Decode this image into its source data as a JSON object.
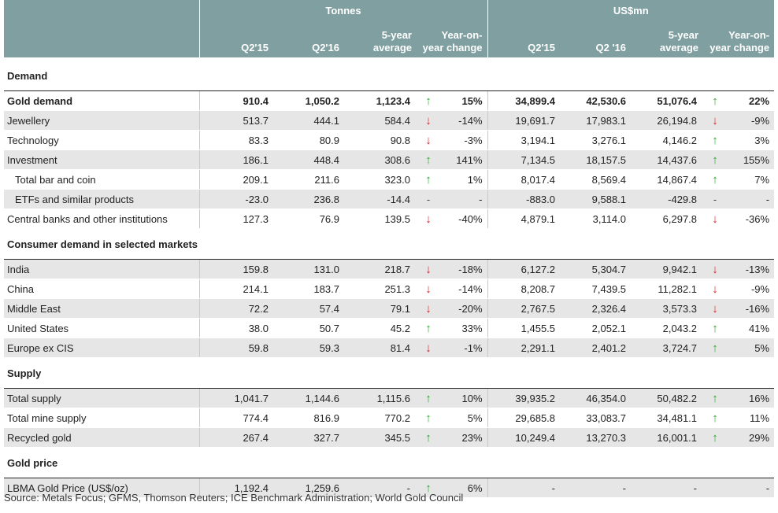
{
  "header": {
    "group_tonnes": "Tonnes",
    "group_usd": "US$mn",
    "col_q2_15": "Q2'15",
    "col_q2_16": "Q2'16",
    "col_5yr_1": "5-year",
    "col_5yr_2": "average",
    "col_yoy_1": "Year-on-",
    "col_yoy_2": "year change",
    "col_q2_15_usd": "Q2'15",
    "col_q2_16_usd": "Q2 '16",
    "col_5yr_usd_1": "5-year",
    "col_5yr_usd_2": "average",
    "col_yoy_usd_1": "Year-on-",
    "col_yoy_usd_2": "year change"
  },
  "sections": {
    "demand": "Demand",
    "consumer": "Consumer demand in selected markets",
    "supply": "Supply",
    "price": "Gold price"
  },
  "rows": [
    {
      "label": "Gold demand",
      "t1": "910.4",
      "t2": "1,050.2",
      "t3": "1,123.4",
      "ta": "up",
      "tc": "15%",
      "u1": "34,899.4",
      "u2": "42,530.6",
      "u3": "51,076.4",
      "ua": "up",
      "uc": "22%"
    },
    {
      "label": "Jewellery",
      "t1": "513.7",
      "t2": "444.1",
      "t3": "584.4",
      "ta": "down",
      "tc": "-14%",
      "u1": "19,691.7",
      "u2": "17,983.1",
      "u3": "26,194.8",
      "ua": "down",
      "uc": "-9%"
    },
    {
      "label": "Technology",
      "t1": "83.3",
      "t2": "80.9",
      "t3": "90.8",
      "ta": "down",
      "tc": "-3%",
      "u1": "3,194.1",
      "u2": "3,276.1",
      "u3": "4,146.2",
      "ua": "up",
      "uc": "3%"
    },
    {
      "label": "Investment",
      "t1": "186.1",
      "t2": "448.4",
      "t3": "308.6",
      "ta": "up",
      "tc": "141%",
      "u1": "7,134.5",
      "u2": "18,157.5",
      "u3": "14,437.6",
      "ua": "up",
      "uc": "155%"
    },
    {
      "label": "Total bar and coin",
      "t1": "209.1",
      "t2": "211.6",
      "t3": "323.0",
      "ta": "up",
      "tc": "1%",
      "u1": "8,017.4",
      "u2": "8,569.4",
      "u3": "14,867.4",
      "ua": "up",
      "uc": "7%"
    },
    {
      "label": "ETFs and similar products",
      "t1": "-23.0",
      "t2": "236.8",
      "t3": "-14.4",
      "ta": "-",
      "tc": "-",
      "u1": "-883.0",
      "u2": "9,588.1",
      "u3": "-429.8",
      "ua": "-",
      "uc": "-"
    },
    {
      "label": "Central banks and other institutions",
      "t1": "127.3",
      "t2": "76.9",
      "t3": "139.5",
      "ta": "down",
      "tc": "-40%",
      "u1": "4,879.1",
      "u2": "3,114.0",
      "u3": "6,297.8",
      "ua": "down",
      "uc": "-36%"
    },
    {
      "label": "India",
      "t1": "159.8",
      "t2": "131.0",
      "t3": "218.7",
      "ta": "down",
      "tc": "-18%",
      "u1": "6,127.2",
      "u2": "5,304.7",
      "u3": "9,942.1",
      "ua": "down",
      "uc": "-13%"
    },
    {
      "label": "China",
      "t1": "214.1",
      "t2": "183.7",
      "t3": "251.3",
      "ta": "down",
      "tc": "-14%",
      "u1": "8,208.7",
      "u2": "7,439.5",
      "u3": "11,282.1",
      "ua": "down",
      "uc": "-9%"
    },
    {
      "label": "Middle East",
      "t1": "72.2",
      "t2": "57.4",
      "t3": "79.1",
      "ta": "down",
      "tc": "-20%",
      "u1": "2,767.5",
      "u2": "2,326.4",
      "u3": "3,573.3",
      "ua": "down",
      "uc": "-16%"
    },
    {
      "label": "United States",
      "t1": "38.0",
      "t2": "50.7",
      "t3": "45.2",
      "ta": "up",
      "tc": "33%",
      "u1": "1,455.5",
      "u2": "2,052.1",
      "u3": "2,043.2",
      "ua": "up",
      "uc": "41%"
    },
    {
      "label": "Europe ex CIS",
      "t1": "59.8",
      "t2": "59.3",
      "t3": "81.4",
      "ta": "down",
      "tc": "-1%",
      "u1": "2,291.1",
      "u2": "2,401.2",
      "u3": "3,724.7",
      "ua": "up",
      "uc": "5%"
    },
    {
      "label": "Total supply",
      "t1": "1,041.7",
      "t2": "1,144.6",
      "t3": "1,115.6",
      "ta": "up",
      "tc": "10%",
      "u1": "39,935.2",
      "u2": "46,354.0",
      "u3": "50,482.2",
      "ua": "up",
      "uc": "16%"
    },
    {
      "label": "Total mine supply",
      "t1": "774.4",
      "t2": "816.9",
      "t3": "770.2",
      "ta": "up",
      "tc": "5%",
      "u1": "29,685.8",
      "u2": "33,083.7",
      "u3": "34,481.1",
      "ua": "up",
      "uc": "11%"
    },
    {
      "label": "Recycled gold",
      "t1": "267.4",
      "t2": "327.7",
      "t3": "345.5",
      "ta": "up",
      "tc": "23%",
      "u1": "10,249.4",
      "u2": "13,270.3",
      "u3": "16,001.1",
      "ua": "up",
      "uc": "29%"
    },
    {
      "label": "LBMA Gold Price (US$/oz)",
      "t1": "1,192.4",
      "t2": "1,259.6",
      "t3": "-",
      "ta": "up",
      "tc": "6%",
      "u1": "-",
      "u2": "-",
      "u3": "-",
      "ua": "",
      "uc": "-"
    }
  ],
  "arrow_colors": {
    "up": "#2bab2b",
    "down": "#e21f1f"
  },
  "icons": {
    "up": "arrow-up-icon",
    "down": "arrow-down-icon"
  },
  "source": "Source: Metals Focus; GFMS, Thomson Reuters; ICE Benchmark Administration; World Gold Council"
}
